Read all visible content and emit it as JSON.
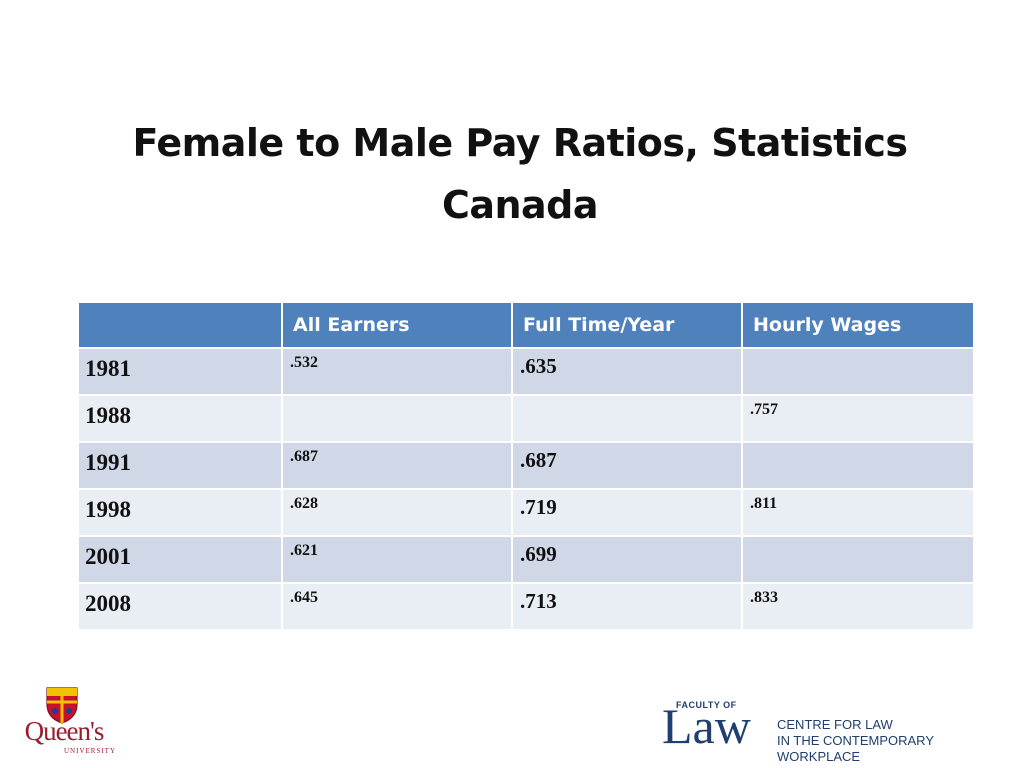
{
  "title": "Female to Male Pay Ratios, Statistics Canada",
  "table": {
    "headers": [
      "",
      "All Earners",
      "Full Time/Year",
      "Hourly Wages"
    ],
    "rows": [
      {
        "year": "1981",
        "all_earners": ".532",
        "full_time_year": ".635",
        "hourly_wages": ""
      },
      {
        "year": "1988",
        "all_earners": "",
        "full_time_year": "",
        "hourly_wages": ".757"
      },
      {
        "year": "1991",
        "all_earners": ".687",
        "full_time_year": ".687",
        "hourly_wages": ""
      },
      {
        "year": "1998",
        "all_earners": ".628",
        "full_time_year": ".719",
        "hourly_wages": ".811"
      },
      {
        "year": "2001",
        "all_earners": ".621",
        "full_time_year": ".699",
        "hourly_wages": ""
      },
      {
        "year": "2008",
        "all_earners": ".645",
        "full_time_year": ".713",
        "hourly_wages": ".833"
      }
    ]
  },
  "logos": {
    "queens": {
      "word": "Queen's",
      "sub": "UNIVERSITY"
    },
    "law": {
      "faculty": "FACULTY OF",
      "word": "Law",
      "centre_line1": "CENTRE FOR LAW",
      "centre_line2": "IN THE CONTEMPORARY WORKPLACE"
    }
  },
  "colors": {
    "header": "#4f81bd",
    "row_odd": "#d0d8e8",
    "row_even": "#e9edf4",
    "queens_red": "#9b1c31",
    "law_blue": "#1f3f6e"
  }
}
